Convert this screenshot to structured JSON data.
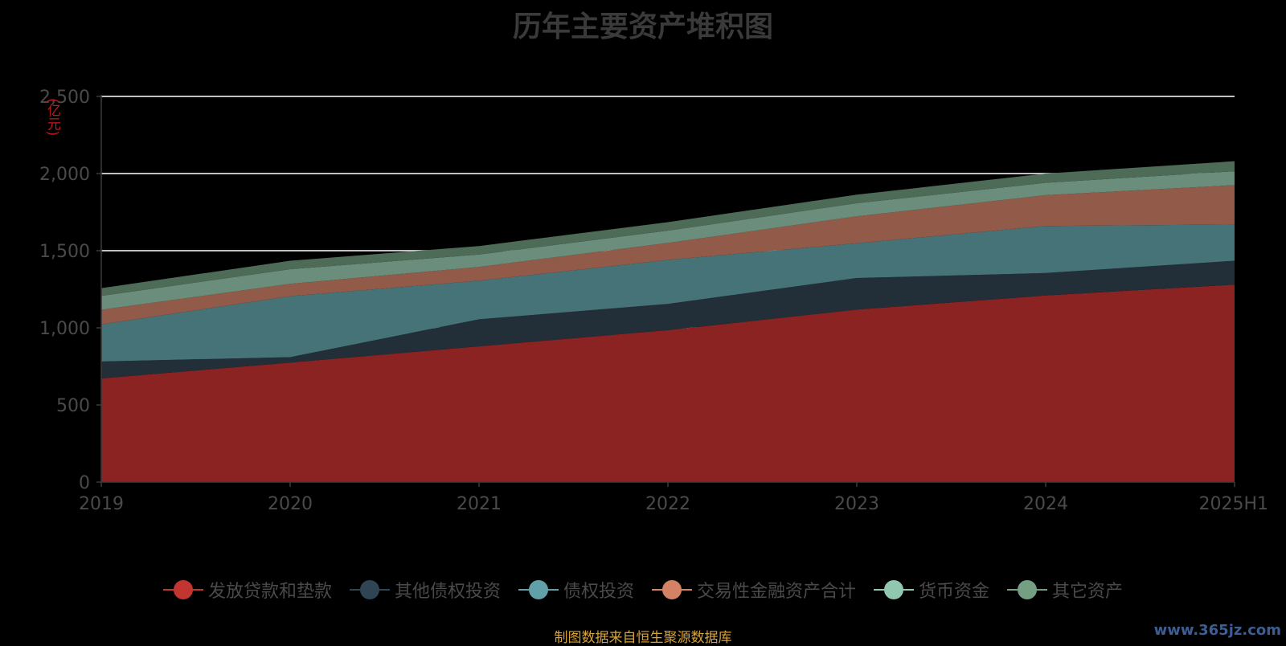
{
  "chart_data": {
    "type": "area",
    "stacked": true,
    "title": "历年主要资产堆积图",
    "unit_label": "(亿元)",
    "categories": [
      "2019",
      "2020",
      "2021",
      "2022",
      "2023",
      "2024",
      "2025H1"
    ],
    "ylim": [
      0,
      2500
    ],
    "yticks": [
      0,
      500,
      1000,
      1500,
      2000,
      2500
    ],
    "ytick_labels": [
      "0",
      "500",
      "1,000",
      "1,500",
      "2,000",
      "2,500"
    ],
    "grid": true,
    "legend_position": "bottom",
    "series": [
      {
        "name": "发放贷款和垫款",
        "color": "#c23531",
        "fill": "#8a2322",
        "values": [
          672,
          775,
          880,
          985,
          1118,
          1210,
          1280
        ]
      },
      {
        "name": "其他债权投资",
        "color": "#2f4554",
        "fill": "#222e38",
        "values": [
          110,
          35,
          175,
          170,
          205,
          145,
          155
        ]
      },
      {
        "name": "债权投资",
        "color": "#61a0a8",
        "fill": "#467377",
        "values": [
          240,
          395,
          250,
          285,
          225,
          305,
          235
        ]
      },
      {
        "name": "交易性金融资产合计",
        "color": "#d48265",
        "fill": "#925a48",
        "values": [
          95,
          80,
          90,
          110,
          175,
          200,
          255
        ]
      },
      {
        "name": "货币资金",
        "color": "#91c7ae",
        "fill": "#6a8d7c",
        "values": [
          90,
          95,
          80,
          80,
          85,
          80,
          90
        ]
      },
      {
        "name": "其它资产",
        "color": "#749f83",
        "fill": "#4d6b57",
        "values": [
          50,
          55,
          55,
          55,
          55,
          60,
          65
        ]
      }
    ]
  },
  "source_note": "制图数据来自恒生聚源数据库",
  "watermark": "www.365jz.com"
}
